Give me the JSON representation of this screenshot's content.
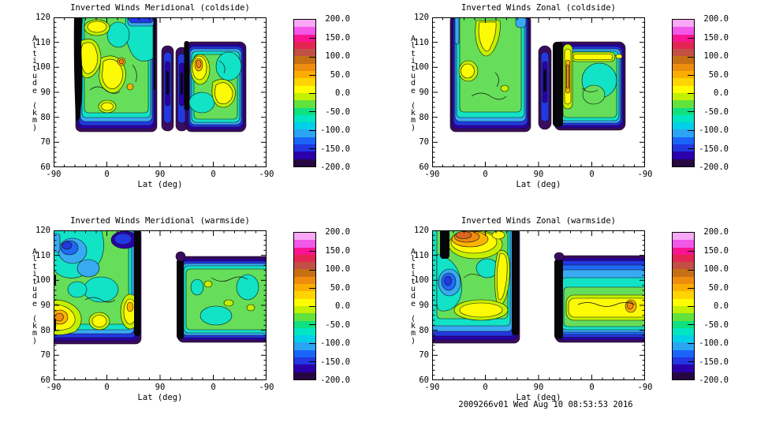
{
  "figure": {
    "background": "#ffffff",
    "footer": "2009266v01 Wed Aug 10 08:53:53 2016"
  },
  "colorbar": {
    "tick_labels": [
      "200.0",
      "150.0",
      "100.0",
      "50.0",
      "0.0",
      "-50.0",
      "-100.0",
      "-150.0",
      "-200.0"
    ],
    "min": -200,
    "max": 200,
    "tick_step": 50,
    "n_bands": 20,
    "colors_top_to_bottom": [
      "#F8A8F6",
      "#F158E8",
      "#FB1392",
      "#E42552",
      "#C25045",
      "#C76F15",
      "#EE8C0D",
      "#FBAE00",
      "#FFD400",
      "#FDFD00",
      "#C3F000",
      "#62E23C",
      "#0FE080",
      "#00E6C2",
      "#00D0E8",
      "#2BA4F2",
      "#1A64FA",
      "#2236E2",
      "#2B00AA",
      "#270742"
    ]
  },
  "panels": [
    {
      "title": "Inverted Winds Meridional (coldside)",
      "xlabel": "Lat (deg)",
      "ylabel": "Altitude (km)",
      "x_ticks": [
        "-90",
        "0",
        "90",
        "0",
        "-90"
      ],
      "y_ticks": [
        "120",
        "110",
        "100",
        "90",
        "80",
        "70",
        "60"
      ]
    },
    {
      "title": "Inverted Winds Zonal (coldside)",
      "xlabel": "Lat (deg)",
      "ylabel": "Altitude (km)",
      "x_ticks": [
        "-90",
        "0",
        "90",
        "0",
        "-90"
      ],
      "y_ticks": [
        "120",
        "110",
        "100",
        "90",
        "80",
        "70",
        "60"
      ]
    },
    {
      "title": "Inverted Winds Meridional (warmside)",
      "xlabel": "Lat (deg)",
      "ylabel": "Altitude (km)",
      "x_ticks": [
        "-90",
        "0",
        "90",
        "0",
        "-90"
      ],
      "y_ticks": [
        "120",
        "110",
        "100",
        "90",
        "80",
        "70",
        "60"
      ]
    },
    {
      "title": "Inverted Winds Zonal (warmside)",
      "xlabel": "Lat (deg)",
      "ylabel": "Altitude (km)",
      "x_ticks": [
        "-90",
        "0",
        "90",
        "0",
        "-90"
      ],
      "y_ticks": [
        "120",
        "110",
        "100",
        "90",
        "80",
        "70",
        "60"
      ]
    }
  ],
  "chart_data": [
    {
      "type": "contour",
      "title": "Inverted Winds Meridional (coldside)",
      "xlabel": "Lat (deg)",
      "ylabel": "Altitude (km)",
      "x_tick_labels": [
        -90,
        0,
        90,
        0,
        -90
      ],
      "ylim": [
        60,
        120
      ],
      "value_range": [
        -200,
        200
      ],
      "colorbar_ticks": [
        200,
        150,
        100,
        50,
        0,
        -50,
        -100,
        -150,
        -200
      ],
      "n_color_bands": 20,
      "description": "Two data swaths (ascending/descending latitude scans) between ~75 and 120 km. Interiors mostly -50 to 0 (green) with yellow/orange patches near 0 to +50; edges ringed by strong negatives (cyan/blue/purple). Thick black column on left swath edge; two narrow dark blue/purple columns near 90 deg; right swath spans ~75-110 km with orange maximum near its left side."
    },
    {
      "type": "contour",
      "title": "Inverted Winds Zonal (coldside)",
      "xlabel": "Lat (deg)",
      "ylabel": "Altitude (km)",
      "x_tick_labels": [
        -90,
        0,
        90,
        0,
        -90
      ],
      "ylim": [
        60,
        120
      ],
      "value_range": [
        -200,
        200
      ],
      "colorbar_ticks": [
        200,
        150,
        100,
        50,
        0,
        -50,
        -100,
        -150,
        -200
      ],
      "n_color_bands": 20,
      "description": "Left swath green with large yellow maximum aloft (100-120 km) and secondary yellow patch near 95 km; right swath (75-110 km) bordered by a broad black column near 90 deg with a narrow orange positive streak beside it and yellow streaks near its top; blue/purple negative rims at all swath bottoms."
    },
    {
      "type": "contour",
      "title": "Inverted Winds Meridional (warmside)",
      "xlabel": "Lat (deg)",
      "ylabel": "Altitude (km)",
      "x_tick_labels": [
        -90,
        0,
        90,
        0,
        -90
      ],
      "ylim": [
        60,
        120
      ],
      "value_range": [
        -200,
        200
      ],
      "colorbar_ticks": [
        200,
        150,
        100,
        50,
        0,
        -50,
        -100,
        -150,
        -200
      ],
      "n_color_bands": 20,
      "description": "Left swath touches -90 lat: blue negative region at 100-120 km upper-left, dark blue blob at top near 120 km, yellow/orange positive patches near 80-90 km, black column at its right edge. Right swath (75-110 km) mostly green (-50 to 0) with cyan patches and a black column at its left edge."
    },
    {
      "type": "contour",
      "title": "Inverted Winds Zonal (warmside)",
      "xlabel": "Lat (deg)",
      "ylabel": "Altitude (km)",
      "x_tick_labels": [
        -90,
        0,
        90,
        0,
        -90
      ],
      "ylim": [
        60,
        120
      ],
      "value_range": [
        -200,
        200
      ],
      "colorbar_ticks": [
        200,
        150,
        100,
        50,
        0,
        -50,
        -100,
        -150,
        -200
      ],
      "n_color_bands": 20,
      "description": "Left swath: strong positive orange layer at 115-120 km with black column beside it, blue negative blob near 95-100 km, vertical yellow streak and yellow band near 85 km, black column at right edge. Right swath: blue negatives 95-110 km grading to a broad yellow layer near 82-90 km with orange spot, black column at left edge."
    }
  ]
}
